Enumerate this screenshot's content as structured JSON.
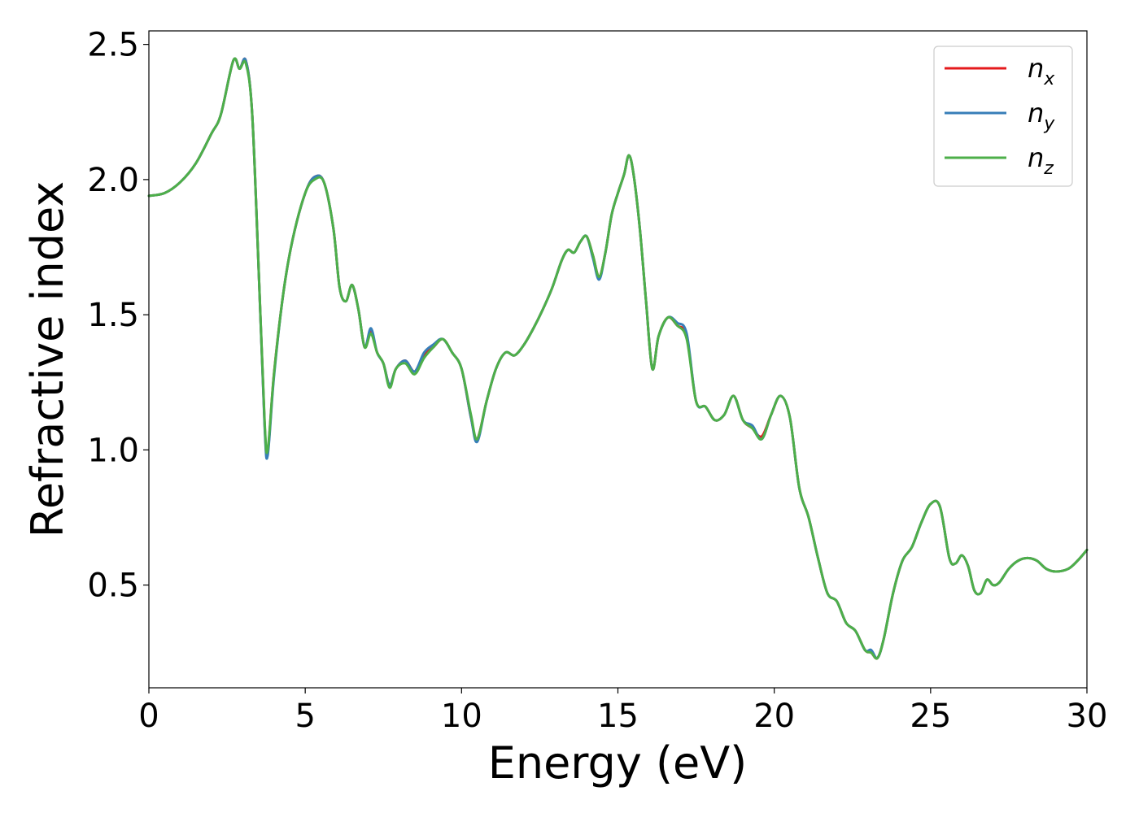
{
  "chart_data": {
    "type": "line",
    "xlabel": "Energy (eV)",
    "ylabel": "Refractive index",
    "xlim": [
      0,
      30
    ],
    "ylim": [
      0.12,
      2.55
    ],
    "xticks": [
      0,
      5,
      10,
      15,
      20,
      25,
      30
    ],
    "xtick_labels": [
      "0",
      "5",
      "10",
      "15",
      "20",
      "25",
      "30"
    ],
    "yticks": [
      0.5,
      1.0,
      1.5,
      2.0,
      2.5
    ],
    "ytick_labels": [
      "0.5",
      "1.0",
      "1.5",
      "2.0",
      "2.5"
    ],
    "grid": false,
    "legend_position": "top-right",
    "series": [
      {
        "name": "n_x",
        "legend_main": "n",
        "legend_sub": "x",
        "color": "#e41a1c",
        "x": [
          0,
          0.5,
          1.0,
          1.5,
          2.0,
          2.3,
          2.7,
          2.9,
          3.1,
          3.3,
          3.5,
          3.7,
          3.8,
          4.0,
          4.3,
          4.6,
          5.0,
          5.3,
          5.6,
          5.9,
          6.1,
          6.3,
          6.5,
          6.7,
          6.9,
          7.1,
          7.3,
          7.5,
          7.7,
          7.9,
          8.2,
          8.5,
          8.8,
          9.1,
          9.4,
          9.7,
          10.0,
          10.3,
          10.5,
          10.8,
          11.1,
          11.4,
          11.7,
          12.0,
          12.3,
          12.6,
          12.9,
          13.2,
          13.4,
          13.6,
          13.8,
          14.0,
          14.2,
          14.4,
          14.6,
          14.8,
          15.0,
          15.2,
          15.35,
          15.5,
          15.7,
          15.9,
          16.1,
          16.3,
          16.6,
          16.9,
          17.2,
          17.5,
          17.8,
          18.1,
          18.4,
          18.7,
          19.0,
          19.3,
          19.6,
          19.9,
          20.2,
          20.5,
          20.8,
          21.1,
          21.4,
          21.7,
          22.0,
          22.3,
          22.6,
          22.9,
          23.1,
          23.3,
          23.5,
          23.8,
          24.1,
          24.4,
          24.7,
          25.0,
          25.3,
          25.6,
          25.8,
          26.0,
          26.2,
          26.4,
          26.6,
          26.8,
          27.0,
          27.2,
          27.5,
          27.8,
          28.1,
          28.4,
          28.7,
          29.0,
          29.4,
          29.7,
          30.0
        ],
        "y": [
          1.94,
          1.95,
          1.99,
          2.06,
          2.17,
          2.24,
          2.44,
          2.41,
          2.44,
          2.25,
          1.7,
          1.1,
          0.99,
          1.28,
          1.58,
          1.78,
          1.95,
          2.01,
          1.99,
          1.82,
          1.6,
          1.55,
          1.61,
          1.52,
          1.38,
          1.44,
          1.36,
          1.32,
          1.24,
          1.3,
          1.33,
          1.29,
          1.35,
          1.38,
          1.41,
          1.36,
          1.3,
          1.12,
          1.04,
          1.18,
          1.3,
          1.36,
          1.35,
          1.39,
          1.45,
          1.52,
          1.6,
          1.7,
          1.74,
          1.73,
          1.77,
          1.79,
          1.72,
          1.64,
          1.73,
          1.87,
          1.95,
          2.02,
          2.09,
          2.02,
          1.82,
          1.55,
          1.3,
          1.42,
          1.49,
          1.46,
          1.42,
          1.18,
          1.16,
          1.11,
          1.13,
          1.2,
          1.11,
          1.08,
          1.05,
          1.13,
          1.2,
          1.12,
          0.86,
          0.75,
          0.6,
          0.47,
          0.44,
          0.36,
          0.33,
          0.26,
          0.25,
          0.23,
          0.3,
          0.47,
          0.59,
          0.64,
          0.73,
          0.8,
          0.79,
          0.6,
          0.58,
          0.61,
          0.57,
          0.48,
          0.47,
          0.52,
          0.5,
          0.51,
          0.56,
          0.59,
          0.6,
          0.59,
          0.56,
          0.55,
          0.56,
          0.59,
          0.63
        ]
      },
      {
        "name": "n_y",
        "legend_main": "n",
        "legend_sub": "y",
        "color": "#377eb8",
        "x": [
          0,
          0.5,
          1.0,
          1.5,
          2.0,
          2.3,
          2.7,
          2.9,
          3.1,
          3.3,
          3.5,
          3.7,
          3.8,
          4.0,
          4.3,
          4.6,
          5.0,
          5.3,
          5.6,
          5.9,
          6.1,
          6.3,
          6.5,
          6.7,
          6.9,
          7.1,
          7.3,
          7.5,
          7.7,
          7.9,
          8.2,
          8.5,
          8.8,
          9.1,
          9.4,
          9.7,
          10.0,
          10.3,
          10.5,
          10.8,
          11.1,
          11.4,
          11.7,
          12.0,
          12.3,
          12.6,
          12.9,
          13.2,
          13.4,
          13.6,
          13.8,
          14.0,
          14.2,
          14.4,
          14.6,
          14.8,
          15.0,
          15.2,
          15.35,
          15.5,
          15.7,
          15.9,
          16.1,
          16.3,
          16.6,
          16.9,
          17.2,
          17.5,
          17.8,
          18.1,
          18.4,
          18.7,
          19.0,
          19.3,
          19.6,
          19.9,
          20.2,
          20.5,
          20.8,
          21.1,
          21.4,
          21.7,
          22.0,
          22.3,
          22.6,
          22.9,
          23.1,
          23.3,
          23.5,
          23.8,
          24.1,
          24.4,
          24.7,
          25.0,
          25.3,
          25.6,
          25.8,
          26.0,
          26.2,
          26.4,
          26.6,
          26.8,
          27.0,
          27.2,
          27.5,
          27.8,
          28.1,
          28.4,
          28.7,
          29.0,
          29.4,
          29.7,
          30.0
        ],
        "y": [
          1.94,
          1.95,
          1.99,
          2.06,
          2.17,
          2.24,
          2.44,
          2.41,
          2.44,
          2.25,
          1.7,
          1.09,
          0.98,
          1.27,
          1.58,
          1.78,
          1.95,
          2.01,
          1.99,
          1.82,
          1.6,
          1.55,
          1.61,
          1.52,
          1.38,
          1.45,
          1.36,
          1.32,
          1.24,
          1.3,
          1.33,
          1.29,
          1.36,
          1.39,
          1.41,
          1.36,
          1.3,
          1.12,
          1.03,
          1.18,
          1.3,
          1.36,
          1.35,
          1.39,
          1.45,
          1.52,
          1.6,
          1.7,
          1.74,
          1.73,
          1.77,
          1.79,
          1.71,
          1.63,
          1.73,
          1.87,
          1.95,
          2.02,
          2.09,
          2.02,
          1.82,
          1.55,
          1.3,
          1.42,
          1.49,
          1.47,
          1.43,
          1.18,
          1.16,
          1.11,
          1.13,
          1.2,
          1.11,
          1.09,
          1.04,
          1.13,
          1.2,
          1.12,
          0.86,
          0.75,
          0.6,
          0.47,
          0.44,
          0.36,
          0.33,
          0.26,
          0.26,
          0.23,
          0.3,
          0.47,
          0.59,
          0.64,
          0.73,
          0.8,
          0.79,
          0.6,
          0.58,
          0.61,
          0.57,
          0.48,
          0.47,
          0.52,
          0.5,
          0.51,
          0.56,
          0.59,
          0.6,
          0.59,
          0.56,
          0.55,
          0.56,
          0.59,
          0.63
        ]
      },
      {
        "name": "n_z",
        "legend_main": "n",
        "legend_sub": "z",
        "color": "#4daf4a",
        "x": [
          0,
          0.5,
          1.0,
          1.5,
          2.0,
          2.3,
          2.7,
          2.9,
          3.1,
          3.3,
          3.5,
          3.7,
          3.8,
          4.0,
          4.3,
          4.6,
          5.0,
          5.3,
          5.6,
          5.9,
          6.1,
          6.3,
          6.5,
          6.7,
          6.9,
          7.1,
          7.3,
          7.5,
          7.7,
          7.9,
          8.2,
          8.5,
          8.8,
          9.1,
          9.4,
          9.7,
          10.0,
          10.3,
          10.5,
          10.8,
          11.1,
          11.4,
          11.7,
          12.0,
          12.3,
          12.6,
          12.9,
          13.2,
          13.4,
          13.6,
          13.8,
          14.0,
          14.2,
          14.4,
          14.6,
          14.8,
          15.0,
          15.2,
          15.35,
          15.5,
          15.7,
          15.9,
          16.1,
          16.3,
          16.6,
          16.9,
          17.2,
          17.5,
          17.8,
          18.1,
          18.4,
          18.7,
          19.0,
          19.3,
          19.6,
          19.9,
          20.2,
          20.5,
          20.8,
          21.1,
          21.4,
          21.7,
          22.0,
          22.3,
          22.6,
          22.9,
          23.1,
          23.3,
          23.5,
          23.8,
          24.1,
          24.4,
          24.7,
          25.0,
          25.3,
          25.6,
          25.8,
          26.0,
          26.2,
          26.4,
          26.6,
          26.8,
          27.0,
          27.2,
          27.5,
          27.8,
          28.1,
          28.4,
          28.7,
          29.0,
          29.4,
          29.7,
          30.0
        ],
        "y": [
          1.94,
          1.95,
          1.99,
          2.06,
          2.17,
          2.24,
          2.44,
          2.41,
          2.43,
          2.25,
          1.7,
          1.11,
          1.0,
          1.28,
          1.58,
          1.78,
          1.95,
          2.0,
          1.99,
          1.82,
          1.6,
          1.55,
          1.61,
          1.52,
          1.38,
          1.43,
          1.36,
          1.32,
          1.23,
          1.3,
          1.32,
          1.28,
          1.34,
          1.38,
          1.41,
          1.36,
          1.3,
          1.13,
          1.04,
          1.18,
          1.3,
          1.36,
          1.35,
          1.39,
          1.45,
          1.52,
          1.6,
          1.7,
          1.74,
          1.73,
          1.77,
          1.79,
          1.72,
          1.64,
          1.73,
          1.87,
          1.95,
          2.02,
          2.09,
          2.02,
          1.82,
          1.55,
          1.3,
          1.42,
          1.49,
          1.46,
          1.41,
          1.18,
          1.16,
          1.11,
          1.13,
          1.2,
          1.11,
          1.08,
          1.04,
          1.13,
          1.2,
          1.12,
          0.86,
          0.75,
          0.6,
          0.47,
          0.44,
          0.36,
          0.33,
          0.26,
          0.25,
          0.23,
          0.3,
          0.47,
          0.59,
          0.64,
          0.73,
          0.8,
          0.79,
          0.6,
          0.58,
          0.61,
          0.57,
          0.48,
          0.47,
          0.52,
          0.5,
          0.51,
          0.56,
          0.59,
          0.6,
          0.59,
          0.56,
          0.55,
          0.56,
          0.59,
          0.63
        ]
      }
    ]
  }
}
